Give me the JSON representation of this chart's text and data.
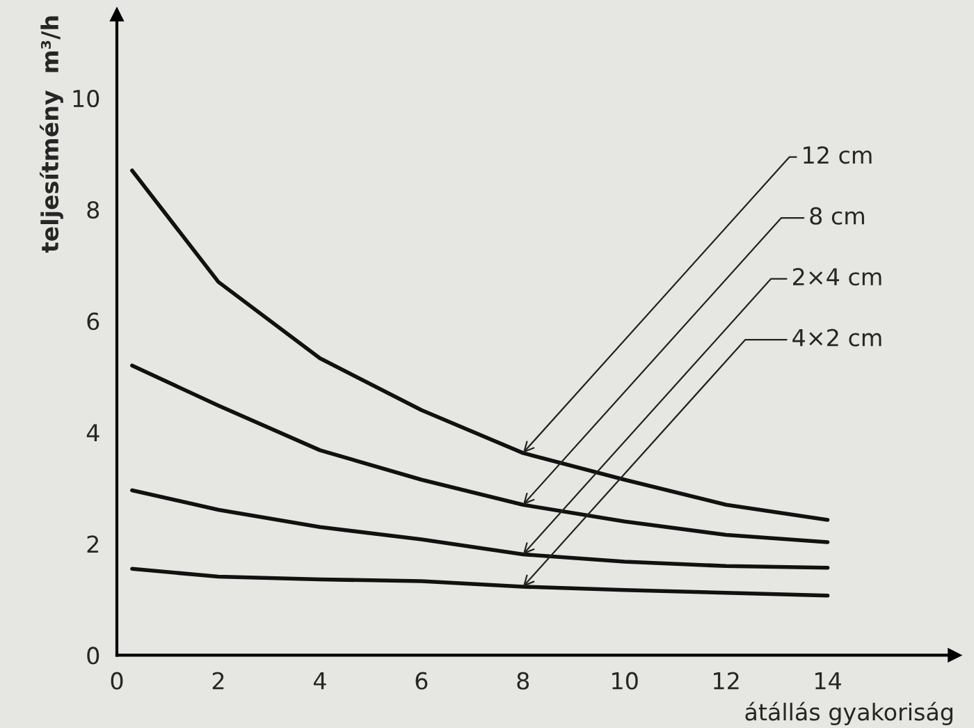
{
  "chart_data": {
    "type": "line",
    "xlabel": "átállás gyakoriság",
    "ylabel": "teljesítmény  m³/h",
    "x": [
      0.3,
      2,
      4,
      6,
      8,
      10,
      12,
      14
    ],
    "series": [
      {
        "name": "12 cm",
        "color": "#111111",
        "values": [
          8.7,
          6.7,
          5.33,
          4.4,
          3.63,
          3.15,
          2.7,
          2.43
        ]
      },
      {
        "name": "8 cm",
        "color": "#111111",
        "values": [
          5.2,
          4.48,
          3.68,
          3.15,
          2.7,
          2.4,
          2.16,
          2.03
        ]
      },
      {
        "name": "2×4 cm",
        "color": "#111111",
        "values": [
          2.96,
          2.61,
          2.3,
          2.08,
          1.81,
          1.68,
          1.6,
          1.57
        ]
      },
      {
        "name": "4×2 cm",
        "color": "#111111",
        "values": [
          1.55,
          1.41,
          1.36,
          1.33,
          1.23,
          1.17,
          1.12,
          1.07
        ]
      }
    ],
    "xlim": [
      0,
      16.5
    ],
    "ylim": [
      0,
      11.5
    ],
    "xticks": [
      0,
      2,
      4,
      6,
      8,
      10,
      12,
      14
    ],
    "yticks": [
      0,
      2,
      4,
      6,
      8,
      10
    ],
    "grid": false,
    "legend": false,
    "marker": "none",
    "line_style": "solid"
  }
}
